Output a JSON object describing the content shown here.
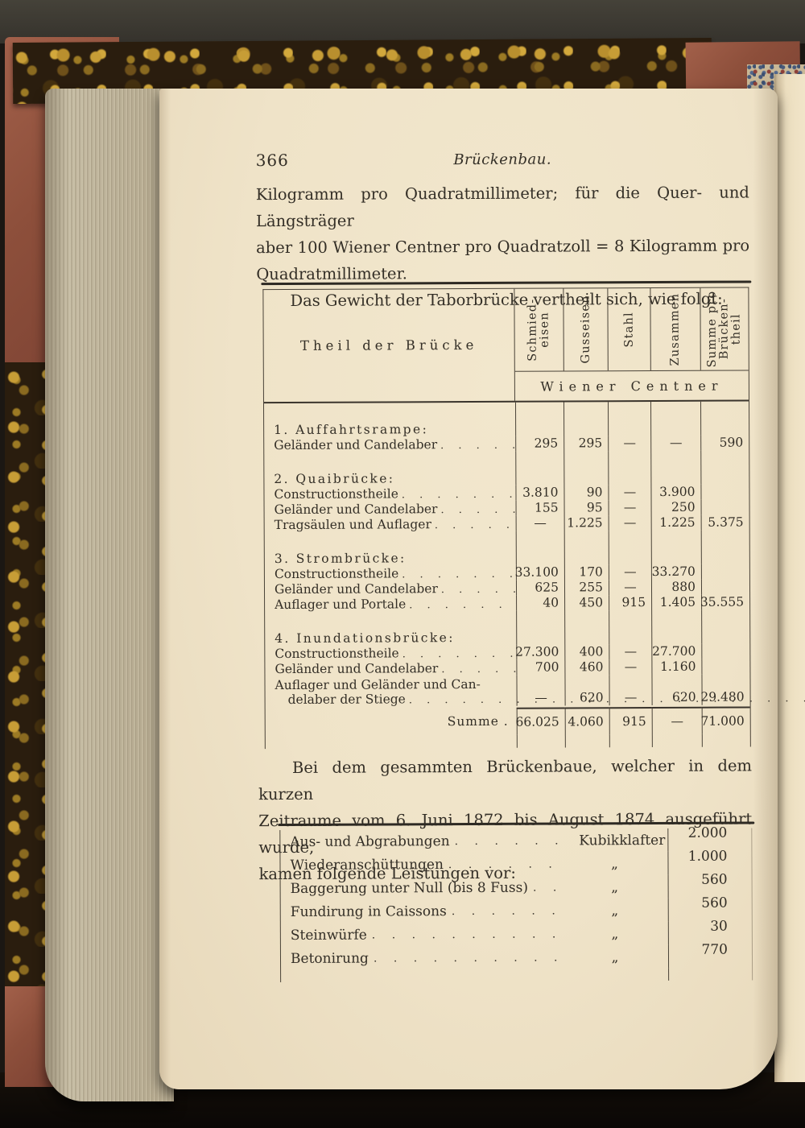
{
  "page_header": {
    "page_number": "366",
    "running_title": "Brückenbau."
  },
  "paragraph1": {
    "lines": [
      "Kilogramm pro Quadratmillimeter; für die Quer- und Längsträger",
      "aber 100 Wiener Centner pro Quadratzoll = 8 Kilogramm pro",
      "Quadratmillimeter."
    ],
    "intro_line": "Das Gewicht der Taborbrücke vertheilt sich, wie folgt:"
  },
  "weight_table": {
    "row_header": "Theil der Brücke",
    "columns": [
      {
        "name": "Schmiedeisen",
        "lines": [
          "Schmied-",
          "eisen"
        ]
      },
      {
        "name": "Gusseisen",
        "lines": [
          "Gusseisen"
        ]
      },
      {
        "name": "Stahl",
        "lines": [
          "Stahl"
        ]
      },
      {
        "name": "Zusammen",
        "lines": [
          "Zusammen"
        ]
      },
      {
        "name": "Summe pro Brückentheil",
        "lines": [
          "Summe pro",
          "Brücken-",
          "theil"
        ]
      }
    ],
    "unit_banner": "Wiener Centner",
    "groups": [
      {
        "title": "1. Auffahrtsrampe:",
        "rows": [
          {
            "label": "Geländer und Candelaber",
            "values": [
              "295",
              "295",
              "—",
              "—",
              "590"
            ]
          }
        ]
      },
      {
        "title": "2. Quaibrücke:",
        "rows": [
          {
            "label": "Constructionstheile",
            "values": [
              "3.810",
              "90",
              "—",
              "3.900",
              ""
            ]
          },
          {
            "label": "Geländer und Candelaber",
            "values": [
              "155",
              "95",
              "—",
              "250",
              ""
            ]
          },
          {
            "label": "Tragsäulen und Auflager",
            "values": [
              "—",
              "1.225",
              "—",
              "1.225",
              "5.375"
            ]
          }
        ]
      },
      {
        "title": "3. Strombrücke:",
        "rows": [
          {
            "label": "Constructionstheile",
            "values": [
              "33.100",
              "170",
              "—",
              "33.270",
              ""
            ]
          },
          {
            "label": "Geländer und Candelaber",
            "values": [
              "625",
              "255",
              "—",
              "880",
              ""
            ]
          },
          {
            "label": "Auflager und Portale",
            "values": [
              "40",
              "450",
              "915",
              "1.405",
              "35.555"
            ]
          }
        ]
      },
      {
        "title": "4. Inundationsbrücke:",
        "rows": [
          {
            "label": "Constructionstheile",
            "values": [
              "27.300",
              "400",
              "—",
              "27.700",
              ""
            ]
          },
          {
            "label": "Geländer und Candelaber",
            "values": [
              "700",
              "460",
              "—",
              "1.160",
              ""
            ]
          },
          {
            "label": "Auflager und Geländer und Can-",
            "label2": "delaber der Stiege",
            "values": [
              "—",
              "620",
              "—",
              "620",
              "29.480"
            ]
          }
        ]
      }
    ],
    "total_row": {
      "label": "Summe .",
      "values": [
        "66.025",
        "4.060",
        "915",
        "—",
        "71.000"
      ]
    }
  },
  "paragraph2": {
    "lines": [
      "Bei dem gesammten Brückenbaue, welcher in dem kurzen",
      "Zeitraume vom 6. Juni 1872 bis August 1874 ausgeführt wurde,",
      "kamen folgende Leistungen vor:"
    ]
  },
  "works_table": {
    "rows": [
      {
        "label": "Aus- und Abgrabungen",
        "unit": "Kubikklafter",
        "value": "2.000"
      },
      {
        "label": "Wiederanschüttungen",
        "unit": "„",
        "value": "1.000"
      },
      {
        "label": "Baggerung unter Null (bis 8 Fuss)",
        "unit": "„",
        "value": "560"
      },
      {
        "label": "Fundirung in Caissons",
        "unit": "„",
        "value": "560"
      },
      {
        "label": "Steinwürfe",
        "unit": "„",
        "value": "30"
      },
      {
        "label": "Betonirung",
        "unit": "„",
        "value": "770"
      }
    ]
  },
  "colors": {
    "paper": "#efe3c8",
    "ink": "#332e26",
    "table_rule": "#4a4338",
    "cover_leather": "#9a5a42",
    "cover_marble_gold": "#c49a33",
    "page_edges": "#c6bda4",
    "backdrop": "#1b1713"
  }
}
